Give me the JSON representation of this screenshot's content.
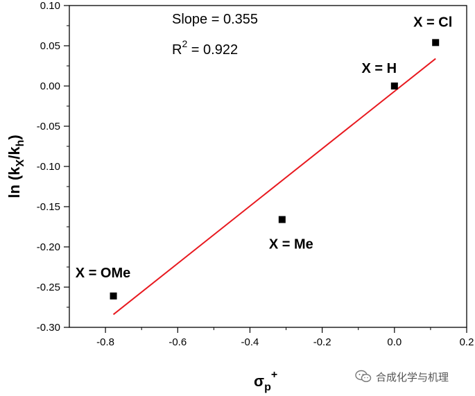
{
  "chart_data": {
    "type": "scatter",
    "xlim": [
      -0.9,
      0.2
    ],
    "ylim": [
      -0.3,
      0.1
    ],
    "x_ticks": [
      -0.8,
      -0.6,
      -0.4,
      -0.2,
      0.0,
      0.2
    ],
    "x_tick_labels": [
      "-0.8",
      "-0.6",
      "-0.4",
      "-0.2",
      "0.0",
      "0.2"
    ],
    "y_ticks": [
      -0.3,
      -0.25,
      -0.2,
      -0.15,
      -0.1,
      -0.05,
      0.0,
      0.05,
      0.1
    ],
    "y_tick_labels": [
      "-0.30",
      "-0.25",
      "-0.20",
      "-0.15",
      "-0.10",
      "-0.05",
      "0.00",
      "0.05",
      "0.10"
    ],
    "xlabel": {
      "main": "σ",
      "sub": "p",
      "sup": "+"
    },
    "ylabel": {
      "pre": "ln (k",
      "sub1": "X",
      "mid": "/k",
      "sub2": "h",
      "post": ")"
    },
    "grid": false,
    "series": [
      {
        "marker": "square",
        "color": "#000000",
        "points": [
          {
            "x": -0.778,
            "y": -0.261,
            "label": "X = OMe"
          },
          {
            "x": -0.311,
            "y": -0.166,
            "label": "X = Me"
          },
          {
            "x": 0.0,
            "y": 0.0,
            "label": "X = H"
          },
          {
            "x": 0.114,
            "y": 0.054,
            "label": "X = Cl"
          }
        ]
      }
    ],
    "fit_line": {
      "color": "#e8191f",
      "x": [
        -0.778,
        0.114
      ],
      "y": [
        -0.284,
        0.034
      ]
    },
    "annotations": {
      "slope": "Slope = 0.355",
      "r2_pre": "R",
      "r2_sup": "2",
      "r2_post": " = 0.922"
    }
  },
  "watermark": {
    "text": "合成化学与机理",
    "icon": "wechat-icon"
  }
}
